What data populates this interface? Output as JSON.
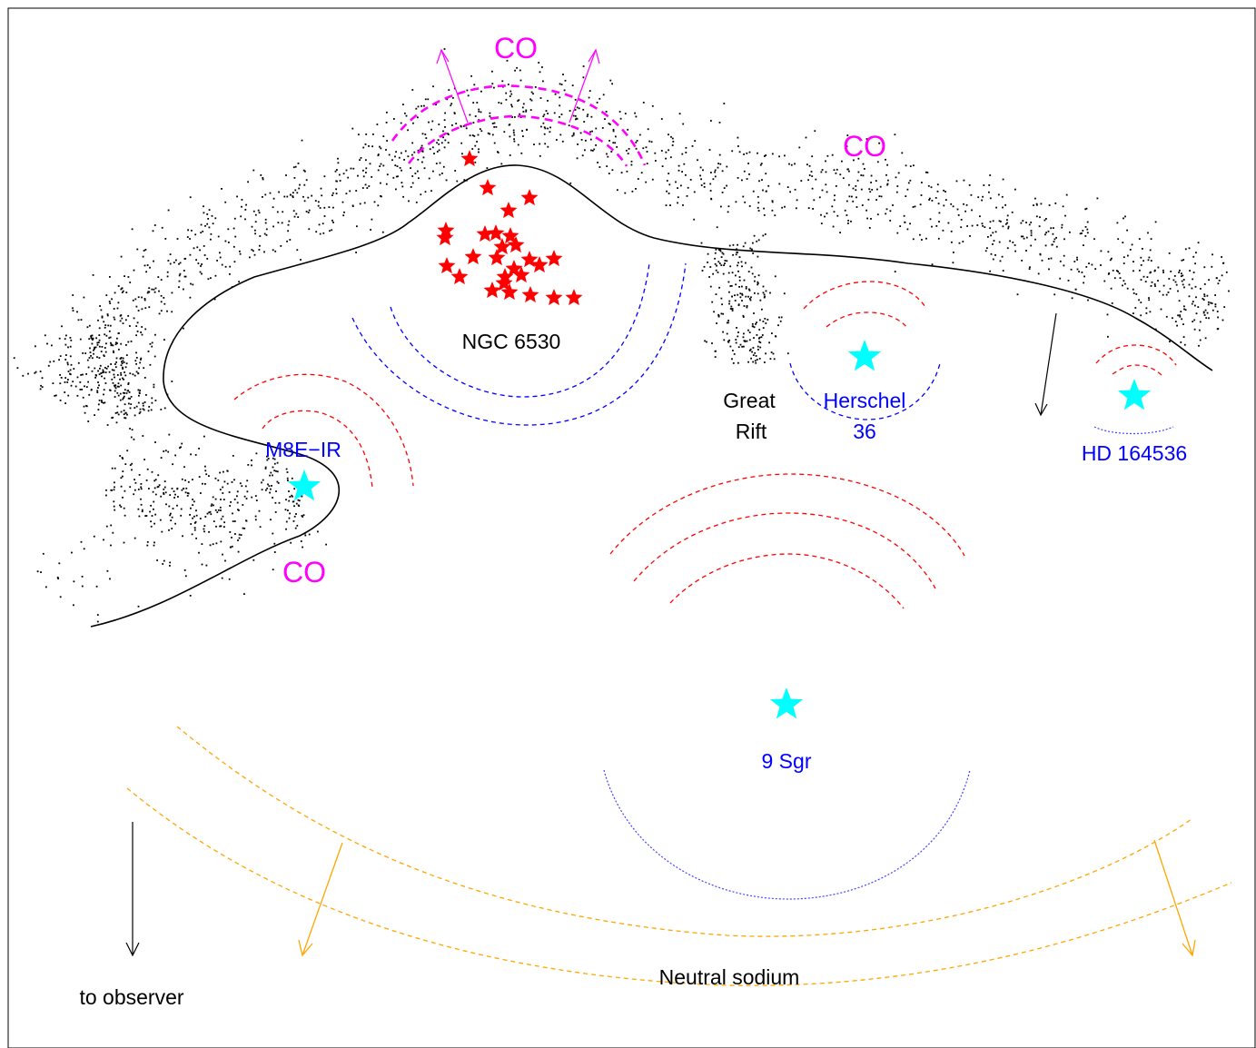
{
  "colors": {
    "background": "#ffffff",
    "frame": "#000000",
    "boundary": "#000000",
    "dust": "#000000",
    "co": "#ff00ff",
    "heated": "#ff0000",
    "cool": "#0000ff",
    "star_cyan": "#00ffff",
    "star_red": "#ff0000",
    "sodium": "#ffa500",
    "blue_label": "#0000ff",
    "black_label": "#000000"
  },
  "labels": {
    "co_top": "CO",
    "co_right": "CO",
    "co_left": "CO",
    "ngc": "NGC 6530",
    "great": "Great",
    "rift": "Rift",
    "herschel": "Herschel",
    "herschel_num": "36",
    "hd": "HD 164536",
    "m8e": "M8E−IR",
    "sgr": "9 Sgr",
    "sodium": "Neutral sodium",
    "observer": "to observer"
  },
  "icons": {
    "exciting_star": "star-icon",
    "cluster_star": "star-icon"
  }
}
